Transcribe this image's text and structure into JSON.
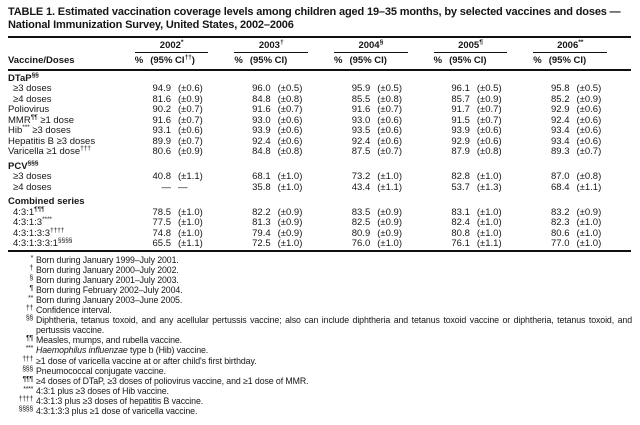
{
  "table": {
    "title": "TABLE 1. Estimated vaccination coverage levels among children aged 19–35 months, by selected vaccines and doses — National Immunization Survey, United States, 2002–2006",
    "header": {
      "label_col": "Vaccine/Doses",
      "years": [
        {
          "year": "2002",
          "marker": "*",
          "pct": "%",
          "ci_pre": "(95% CI",
          "ci_sup": "††",
          "ci_post": ")"
        },
        {
          "year": "2003",
          "marker": "†",
          "pct": "%",
          "ci_pre": "(95% CI",
          "ci_sup": "",
          "ci_post": ")"
        },
        {
          "year": "2004",
          "marker": "§",
          "pct": "%",
          "ci_pre": "(95% CI",
          "ci_sup": "",
          "ci_post": ")"
        },
        {
          "year": "2005",
          "marker": "¶",
          "pct": "%",
          "ci_pre": "(95% CI",
          "ci_sup": "",
          "ci_post": ")"
        },
        {
          "year": "2006",
          "marker": "**",
          "pct": "%",
          "ci_pre": "(95% CI",
          "ci_sup": "",
          "ci_post": ")"
        }
      ]
    },
    "rows": [
      {
        "type": "section",
        "pre": "DTaP",
        "sup": "§§",
        "post": "",
        "gap": false
      },
      {
        "type": "data",
        "indent": true,
        "pre": "≥3 doses",
        "sup": "",
        "post": "",
        "values": [
          [
            "94.9",
            "(±0.6)"
          ],
          [
            "96.0",
            "(±0.5)"
          ],
          [
            "95.9",
            "(±0.5)"
          ],
          [
            "96.1",
            "(±0.5)"
          ],
          [
            "95.8",
            "(±0.5)"
          ]
        ]
      },
      {
        "type": "data",
        "indent": true,
        "pre": "≥4 doses",
        "sup": "",
        "post": "",
        "values": [
          [
            "81.6",
            "(±0.9)"
          ],
          [
            "84.8",
            "(±0.8)"
          ],
          [
            "85.5",
            "(±0.8)"
          ],
          [
            "85.7",
            "(±0.9)"
          ],
          [
            "85.2",
            "(±0.9)"
          ]
        ]
      },
      {
        "type": "data",
        "indent": false,
        "pre": "Poliovirus",
        "sup": "",
        "post": "",
        "values": [
          [
            "90.2",
            "(±0.7)"
          ],
          [
            "91.6",
            "(±0.7)"
          ],
          [
            "91.6",
            "(±0.7)"
          ],
          [
            "91.7",
            "(±0.7)"
          ],
          [
            "92.9",
            "(±0.6)"
          ]
        ]
      },
      {
        "type": "data",
        "indent": false,
        "pre": "MMR",
        "sup": "¶¶",
        "post": " ≥1 dose",
        "values": [
          [
            "91.6",
            "(±0.7)"
          ],
          [
            "93.0",
            "(±0.6)"
          ],
          [
            "93.0",
            "(±0.6)"
          ],
          [
            "91.5",
            "(±0.7)"
          ],
          [
            "92.4",
            "(±0.6)"
          ]
        ]
      },
      {
        "type": "data",
        "indent": false,
        "pre": "Hib",
        "sup": "***",
        "post": " ≥3 doses",
        "values": [
          [
            "93.1",
            "(±0.6)"
          ],
          [
            "93.9",
            "(±0.6)"
          ],
          [
            "93.5",
            "(±0.6)"
          ],
          [
            "93.9",
            "(±0.6)"
          ],
          [
            "93.4",
            "(±0.6)"
          ]
        ]
      },
      {
        "type": "data",
        "indent": false,
        "pre": "Hepatitis B ≥3 doses",
        "sup": "",
        "post": "",
        "values": [
          [
            "89.9",
            "(±0.7)"
          ],
          [
            "92.4",
            "(±0.6)"
          ],
          [
            "92.4",
            "(±0.6)"
          ],
          [
            "92.9",
            "(±0.6)"
          ],
          [
            "93.4",
            "(±0.6)"
          ]
        ]
      },
      {
        "type": "data",
        "indent": false,
        "pre": "Varicella ≥1 dose",
        "sup": "†††",
        "post": "",
        "values": [
          [
            "80.6",
            "(±0.9)"
          ],
          [
            "84.8",
            "(±0.8)"
          ],
          [
            "87.5",
            "(±0.7)"
          ],
          [
            "87.9",
            "(±0.8)"
          ],
          [
            "89.3",
            "(±0.7)"
          ]
        ]
      },
      {
        "type": "section",
        "pre": "PCV",
        "sup": "§§§",
        "post": "",
        "gap": true
      },
      {
        "type": "data",
        "indent": true,
        "pre": "≥3 doses",
        "sup": "",
        "post": "",
        "values": [
          [
            "40.8",
            "(±1.1)"
          ],
          [
            "68.1",
            "(±1.0)"
          ],
          [
            "73.2",
            "(±1.0)"
          ],
          [
            "82.8",
            "(±1.0)"
          ],
          [
            "87.0",
            "(±0.8)"
          ]
        ]
      },
      {
        "type": "data",
        "indent": true,
        "pre": "≥4 doses",
        "sup": "",
        "post": "",
        "values": [
          [
            "—",
            "—"
          ],
          [
            "35.8",
            "(±1.0)"
          ],
          [
            "43.4",
            "(±1.1)"
          ],
          [
            "53.7",
            "(±1.3)"
          ],
          [
            "68.4",
            "(±1.1)"
          ]
        ]
      },
      {
        "type": "section",
        "pre": "Combined series",
        "sup": "",
        "post": "",
        "gap": true
      },
      {
        "type": "data",
        "indent": true,
        "pre": "4:3:1",
        "sup": "¶¶¶",
        "post": "",
        "values": [
          [
            "78.5",
            "(±1.0)"
          ],
          [
            "82.2",
            "(±0.9)"
          ],
          [
            "83.5",
            "(±0.9)"
          ],
          [
            "83.1",
            "(±1.0)"
          ],
          [
            "83.2",
            "(±0.9)"
          ]
        ]
      },
      {
        "type": "data",
        "indent": true,
        "pre": "4:3:1:3",
        "sup": "****",
        "post": "",
        "values": [
          [
            "77.5",
            "(±1.0)"
          ],
          [
            "81.3",
            "(±0.9)"
          ],
          [
            "82.5",
            "(±0.9)"
          ],
          [
            "82.4",
            "(±1.0)"
          ],
          [
            "82.3",
            "(±1.0)"
          ]
        ]
      },
      {
        "type": "data",
        "indent": true,
        "pre": "4:3:1:3:3",
        "sup": "††††",
        "post": "",
        "values": [
          [
            "74.8",
            "(±1.0)"
          ],
          [
            "79.4",
            "(±0.9)"
          ],
          [
            "80.9",
            "(±0.9)"
          ],
          [
            "80.8",
            "(±1.0)"
          ],
          [
            "80.6",
            "(±1.0)"
          ]
        ]
      },
      {
        "type": "data",
        "indent": true,
        "pre": "4:3:1:3:3:1",
        "sup": "§§§§",
        "post": "",
        "values": [
          [
            "65.5",
            "(±1.1)"
          ],
          [
            "72.5",
            "(±1.0)"
          ],
          [
            "76.0",
            "(±1.0)"
          ],
          [
            "76.1",
            "(±1.1)"
          ],
          [
            "77.0",
            "(±1.0)"
          ]
        ]
      }
    ],
    "footnotes": [
      {
        "marker": "*",
        "text": "Born during January 1999–July 2001."
      },
      {
        "marker": "†",
        "text": "Born during January 2000–July 2002."
      },
      {
        "marker": "§",
        "text": "Born during January 2001–July 2003."
      },
      {
        "marker": "¶",
        "text": "Born during February 2002–July 2004."
      },
      {
        "marker": "**",
        "text": "Born during January 2003–June 2005."
      },
      {
        "marker": "††",
        "text": "Confidence interval."
      },
      {
        "marker": "§§",
        "text": "Diphtheria, tetanus toxoid, and any acellular pertussis vaccine; also can include diphtheria and tetanus toxoid vaccine or diphtheria, tetanus toxoid, and pertussis vaccine."
      },
      {
        "marker": "¶¶",
        "text": "Measles, mumps, and rubella vaccine."
      },
      {
        "marker": "***",
        "italic": "Haemophilus influenzae",
        "text": " type b (Hib) vaccine."
      },
      {
        "marker": "†††",
        "text": "≥1 dose of varicella vaccine at or after child's first birthday."
      },
      {
        "marker": "§§§",
        "text": "Pneumococcal conjugate vaccine."
      },
      {
        "marker": "¶¶¶",
        "text": "≥4 doses of DTaP, ≥3 doses of poliovirus vaccine, and ≥1 dose of MMR."
      },
      {
        "marker": "****",
        "text": "4:3:1 plus ≥3 doses of Hib vaccine."
      },
      {
        "marker": "††††",
        "text": "4:3:1:3 plus ≥3 doses of hepatitis B vaccine."
      },
      {
        "marker": "§§§§",
        "text": "4:3:1:3:3 plus ≥1 dose of varicella vaccine."
      }
    ]
  }
}
